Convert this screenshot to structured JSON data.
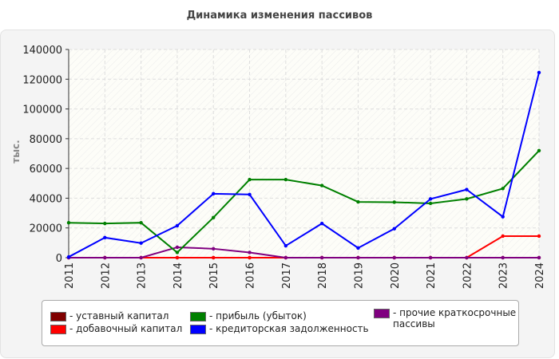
{
  "chart_data": {
    "type": "line",
    "title": "Динамика изменения пассивов",
    "ylabel": "тыс.",
    "xlabel": "",
    "ylim": [
      0,
      140000
    ],
    "yticks": [
      "0",
      "20000",
      "40000",
      "60000",
      "80000",
      "100000",
      "120000",
      "140000"
    ],
    "categories": [
      "2011",
      "2012",
      "2013",
      "2014",
      "2015",
      "2016",
      "2017",
      "2018",
      "2019",
      "2020",
      "2021",
      "2022",
      "2023",
      "2024"
    ],
    "grid": true,
    "legend_position": "bottom",
    "series": [
      {
        "name": "- уставный капитал",
        "color": "#800000",
        "values": [
          10,
          10,
          10,
          10,
          10,
          10,
          10,
          10,
          10,
          10,
          10,
          10,
          10,
          10
        ]
      },
      {
        "name": "- добавочный капитал",
        "color": "#ff0000",
        "values": [
          0,
          0,
          0,
          0,
          0,
          0,
          0,
          0,
          0,
          0,
          0,
          0,
          14500,
          14500
        ]
      },
      {
        "name": "- прибыль (убыток)",
        "color": "#008000",
        "values": [
          23500,
          23000,
          23500,
          3500,
          27000,
          52500,
          52500,
          48500,
          37500,
          37300,
          36500,
          39500,
          46500,
          72000
        ]
      },
      {
        "name": "- кредиторская задолженность",
        "color": "#0000ff",
        "values": [
          500,
          13500,
          9800,
          21500,
          43000,
          42500,
          8000,
          23000,
          6500,
          19500,
          39500,
          45800,
          27500,
          124500
        ]
      },
      {
        "name": "- прочие краткосрочные пассивы",
        "color": "#800080",
        "values": [
          0,
          0,
          0,
          7000,
          6000,
          3500,
          0,
          0,
          0,
          0,
          0,
          0,
          0,
          0
        ]
      }
    ]
  }
}
